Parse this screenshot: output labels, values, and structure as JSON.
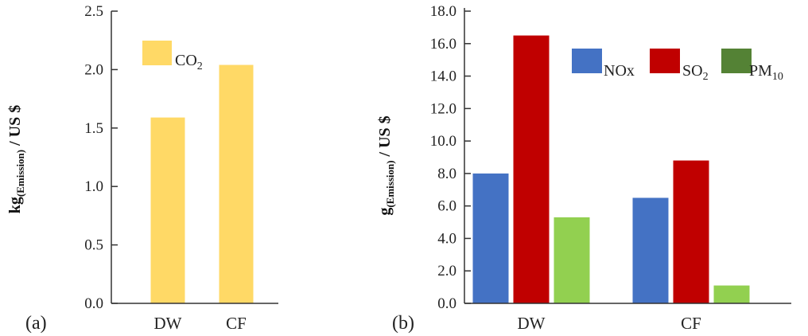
{
  "chart_data": [
    {
      "type": "bar",
      "panel_label": "(a)",
      "categories": [
        "DW",
        "CF"
      ],
      "series": [
        {
          "name": "CO2",
          "label_main": "CO",
          "label_sub": "2",
          "color": "#FFD966",
          "values": [
            1.59,
            2.04
          ]
        }
      ],
      "ylabel": {
        "main": "kg",
        "sub": "(Emission)",
        "tail": " / US $"
      },
      "ylim": [
        0,
        2.5
      ],
      "yticks": [
        "0.0",
        "0.5",
        "1.0",
        "1.5",
        "2.0",
        "2.5"
      ],
      "grid": false,
      "legend": "top"
    },
    {
      "type": "bar",
      "panel_label": "(b)",
      "categories": [
        "DW",
        "CF"
      ],
      "series": [
        {
          "name": "NOx",
          "label_main": "NOx",
          "label_sub": "",
          "color": "#4472C4",
          "values": [
            8.0,
            6.5
          ]
        },
        {
          "name": "SO2",
          "label_main": "SO",
          "label_sub": "2",
          "color": "#C00000",
          "values": [
            16.5,
            8.8
          ]
        },
        {
          "name": "PM10",
          "label_main": "PM",
          "label_sub": "10",
          "color": "#92D050",
          "legend_color": "#548235",
          "values": [
            5.3,
            1.1
          ]
        }
      ],
      "ylabel": {
        "main": "g",
        "sub": "(Emission)",
        "tail": " / US $"
      },
      "ylim": [
        0,
        18
      ],
      "yticks": [
        "0.0",
        "2.0",
        "4.0",
        "6.0",
        "8.0",
        "10.0",
        "12.0",
        "14.0",
        "16.0",
        "18.0"
      ],
      "grid": false,
      "legend": "top-right"
    }
  ]
}
